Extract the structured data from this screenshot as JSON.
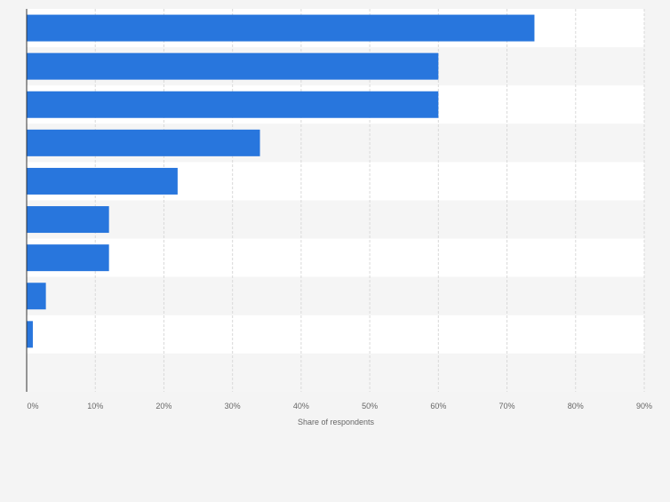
{
  "chart_data": {
    "type": "bar",
    "orientation": "horizontal",
    "categories": [
      "",
      "",
      "",
      "",
      "",
      "",
      "",
      "",
      "",
      ""
    ],
    "values": [
      74,
      60,
      60,
      34,
      22,
      12,
      12,
      2.8,
      0.9,
      0
    ],
    "xlabel": "Share of respondents",
    "ylabel": "",
    "xlim": [
      0,
      90
    ],
    "ticks": [
      "0%",
      "10%",
      "20%",
      "30%",
      "40%",
      "50%",
      "60%",
      "70%",
      "80%",
      "90%"
    ],
    "grid": true,
    "bar_color": "#2876dd",
    "band_colors": [
      "#ffffff",
      "#f5f5f5"
    ],
    "legend": "none"
  }
}
